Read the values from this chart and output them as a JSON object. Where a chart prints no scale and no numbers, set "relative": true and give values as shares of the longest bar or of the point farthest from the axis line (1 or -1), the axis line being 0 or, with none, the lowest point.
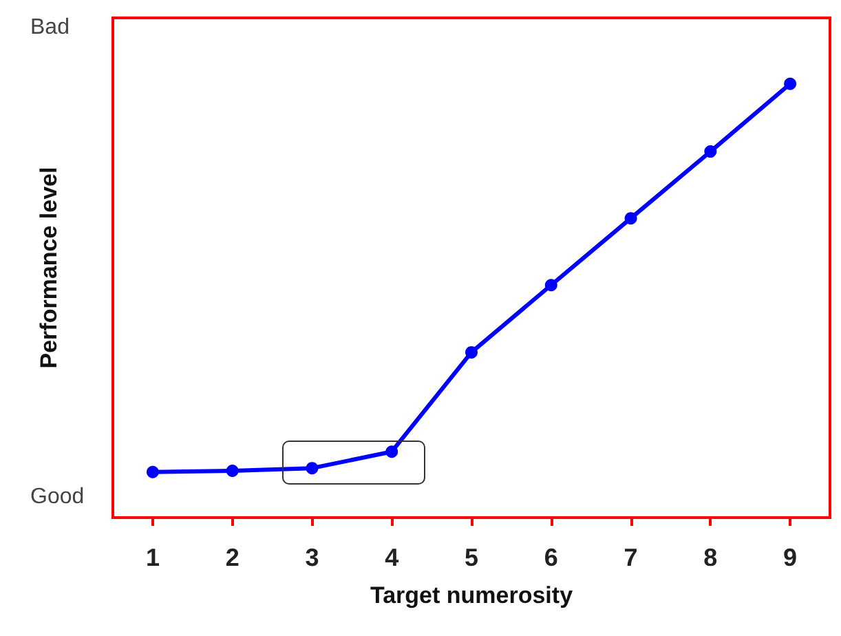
{
  "chart_data": {
    "type": "line",
    "xlabel": "Target numerosity",
    "ylabel": "Performance level",
    "x": [
      1,
      2,
      3,
      4,
      5,
      6,
      7,
      8,
      9
    ],
    "series": [
      {
        "color": "#0000ff",
        "values": [
          0.105,
          0.108,
          0.114,
          0.152,
          0.381,
          0.536,
          0.69,
          0.844,
          1
        ]
      }
    ],
    "relative": true,
    "xlim": [
      0.5,
      9.5
    ],
    "xticks": [
      1,
      2,
      3,
      4,
      5,
      6,
      7,
      8,
      9
    ],
    "annotations": [
      "Good",
      "Bad"
    ],
    "marker": "circle",
    "line_style": "solid"
  }
}
